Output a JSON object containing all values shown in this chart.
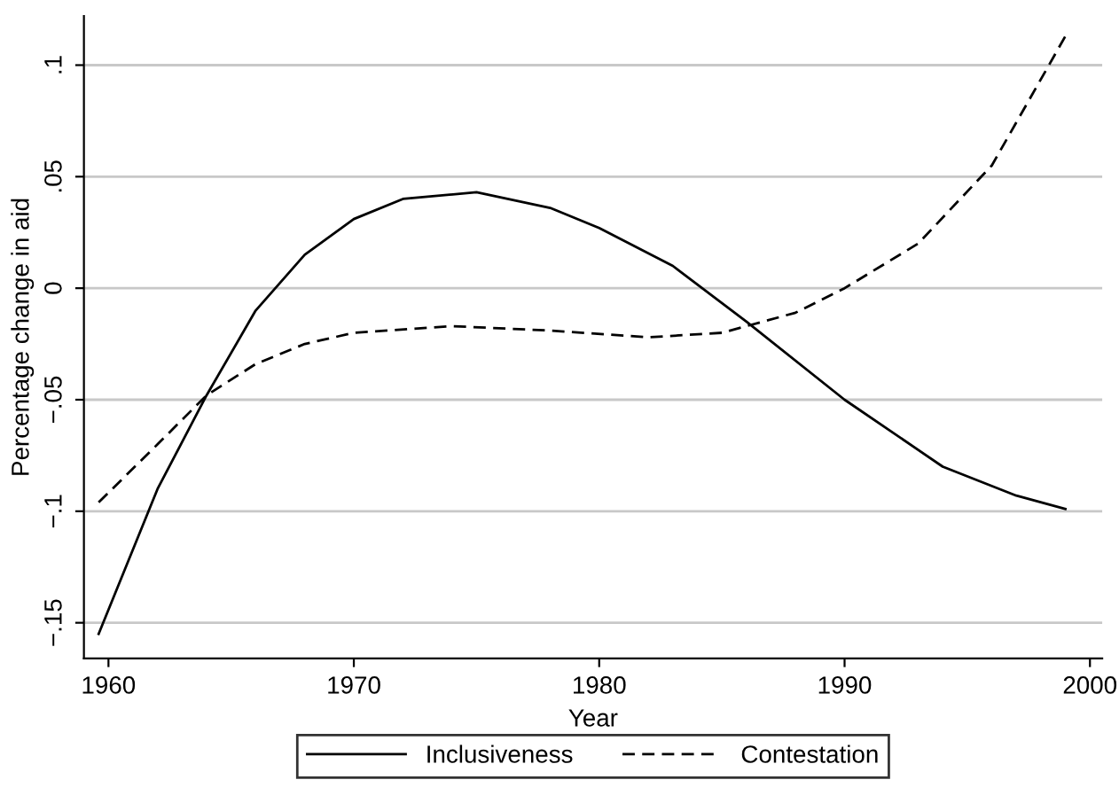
{
  "chart_data": {
    "type": "line",
    "xlabel": "Year",
    "ylabel": "Percentage change in aid",
    "xlim": [
      1959,
      2000.5
    ],
    "ylim": [
      -0.166,
      0.122
    ],
    "xticks": [
      1960,
      1970,
      1980,
      1990,
      2000
    ],
    "yticks": [
      {
        "value": 0.1,
        "label": ".1"
      },
      {
        "value": 0.05,
        "label": ".05"
      },
      {
        "value": 0,
        "label": "0"
      },
      {
        "value": -0.05,
        "label": "−.05"
      },
      {
        "value": -0.1,
        "label": "−.1"
      },
      {
        "value": -0.15,
        "label": "−.15"
      }
    ],
    "grid": "y",
    "legend": "bottom",
    "series": [
      {
        "name": "Inclusiveness",
        "color": "#000000",
        "line_style": "solid",
        "x": [
          1959.6,
          1962,
          1964,
          1966,
          1968,
          1970,
          1972,
          1975,
          1978,
          1980,
          1983,
          1986,
          1990,
          1994,
          1997,
          1999
        ],
        "values": [
          -0.155,
          -0.09,
          -0.048,
          -0.01,
          0.015,
          0.031,
          0.04,
          0.043,
          0.036,
          0.027,
          0.01,
          -0.015,
          -0.05,
          -0.08,
          -0.093,
          -0.099
        ]
      },
      {
        "name": "Contestation",
        "color": "#000000",
        "line_style": "dashed",
        "x": [
          1959.6,
          1962,
          1964,
          1966,
          1968,
          1970,
          1974,
          1978,
          1982,
          1985,
          1988,
          1990,
          1993,
          1996,
          1999
        ],
        "values": [
          -0.096,
          -0.07,
          -0.048,
          -0.034,
          -0.025,
          -0.02,
          -0.017,
          -0.019,
          -0.022,
          -0.02,
          -0.011,
          0,
          0.02,
          0.055,
          0.113
        ]
      }
    ]
  }
}
